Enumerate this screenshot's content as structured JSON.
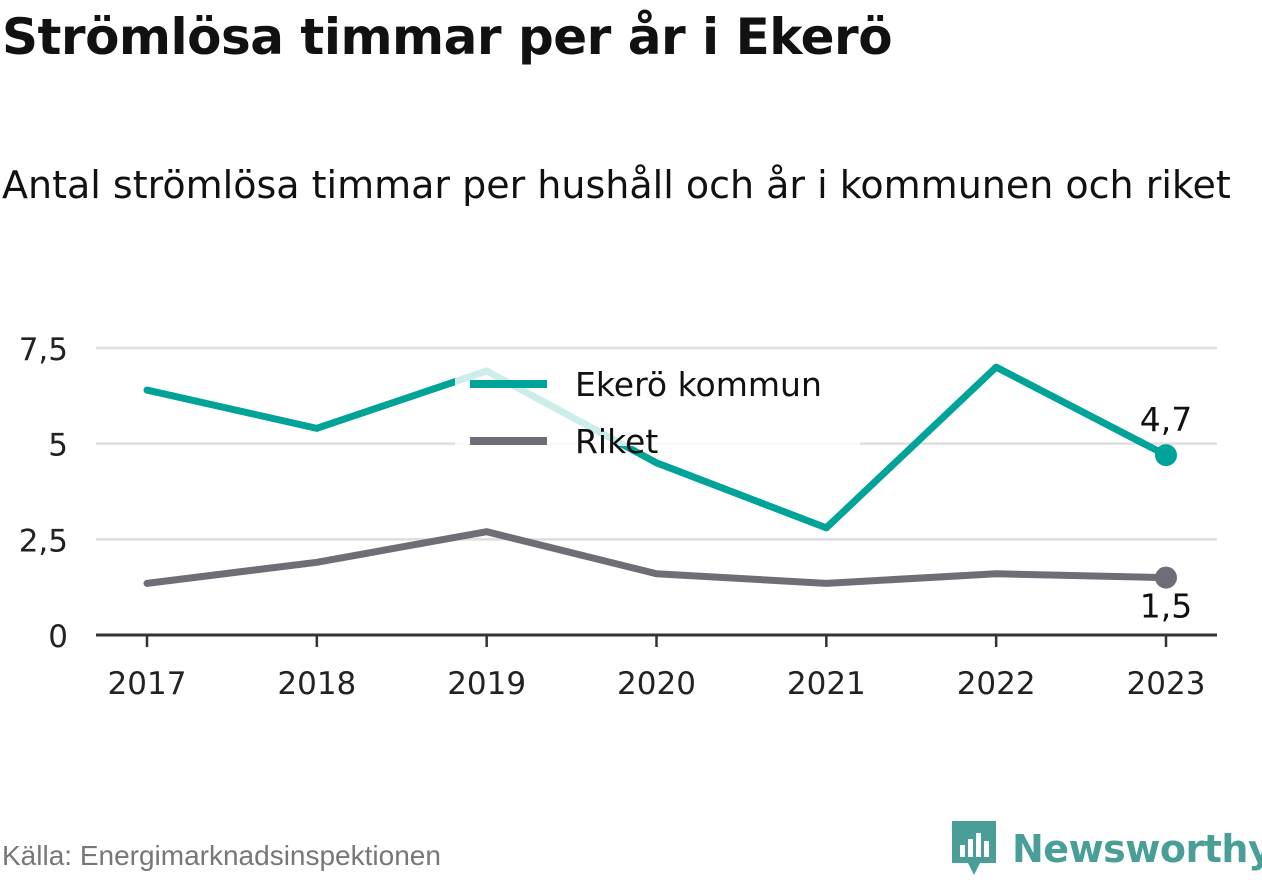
{
  "title": "Strömlösa timmar per år i Ekerö",
  "subtitle": "Antal strömlösa timmar per hushåll och år i kommunen och riket",
  "source": "Källa: Energimarknadsinspektionen",
  "brand": {
    "name": "Newsworthy",
    "color": "#4a9e98",
    "icon": "newsworthy-logo-icon"
  },
  "colors": {
    "ekero": "#00a398",
    "riket": "#6e6e77",
    "grid": "#dedede",
    "axis": "#333333"
  },
  "chart_data": {
    "type": "line",
    "x": [
      "2017",
      "2018",
      "2019",
      "2020",
      "2021",
      "2022",
      "2023"
    ],
    "series": [
      {
        "name": "Ekerö kommun",
        "values": [
          6.4,
          5.4,
          6.9,
          4.5,
          2.8,
          7.0,
          4.7
        ],
        "end_label": "4,7"
      },
      {
        "name": "Riket",
        "values": [
          1.35,
          1.9,
          2.7,
          1.6,
          1.35,
          1.6,
          1.5
        ],
        "end_label": "1,5"
      }
    ],
    "yticks": [
      {
        "value": 0,
        "label": "0"
      },
      {
        "value": 2.5,
        "label": "2,5"
      },
      {
        "value": 5,
        "label": "5"
      },
      {
        "value": 7.5,
        "label": "7,5"
      }
    ],
    "ylim": [
      0,
      7.5
    ],
    "grid": true,
    "legend_position": "top-center"
  }
}
